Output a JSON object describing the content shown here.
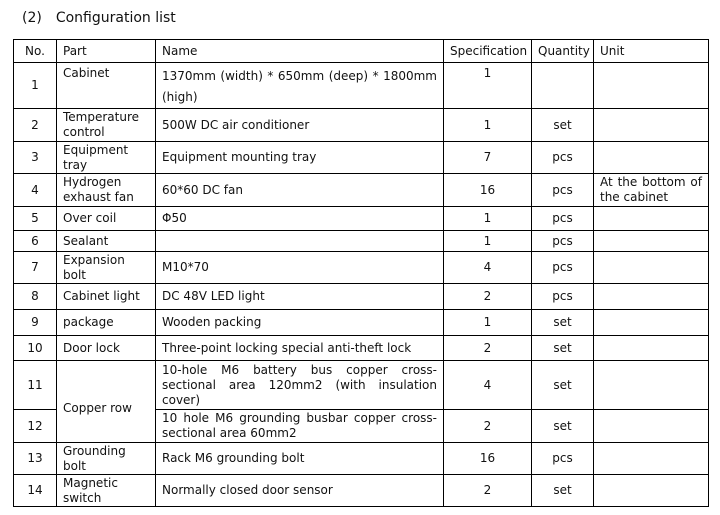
{
  "section": {
    "number": "(2)",
    "title": "Configuration list"
  },
  "headers": [
    "No.",
    "Part",
    "Name",
    "Specification",
    "Quantity",
    "Unit"
  ],
  "rows": [
    {
      "no": "1",
      "part": "Cabinet",
      "name": "1370mm (width) * 650mm (deep) * 1800mm (high)",
      "spec": "1",
      "qty": "",
      "unit": ""
    },
    {
      "no": "2",
      "part": "Temperature control",
      "name": "500W DC air conditioner",
      "spec": "1",
      "qty": "set",
      "unit": ""
    },
    {
      "no": "3",
      "part": "Equipment tray",
      "name": "Equipment mounting tray",
      "spec": "7",
      "qty": "pcs",
      "unit": ""
    },
    {
      "no": "4",
      "part": "Hydrogen exhaust fan",
      "name": "60*60 DC fan",
      "spec": "16",
      "qty": "pcs",
      "unit": "At the bottom of the cabinet"
    },
    {
      "no": "5",
      "part": "Over coil",
      "name": "Φ50",
      "spec": "1",
      "qty": "pcs",
      "unit": ""
    },
    {
      "no": "6",
      "part": "Sealant",
      "name": "",
      "spec": "1",
      "qty": "pcs",
      "unit": ""
    },
    {
      "no": "7",
      "part": "Expansion bolt",
      "name": "M10*70",
      "spec": "4",
      "qty": "pcs",
      "unit": ""
    },
    {
      "no": "8",
      "part": "Cabinet light",
      "name": "DC 48V LED light",
      "spec": "2",
      "qty": "pcs",
      "unit": ""
    },
    {
      "no": "9",
      "part": "package",
      "name": "Wooden packing",
      "spec": "1",
      "qty": "set",
      "unit": ""
    },
    {
      "no": "10",
      "part": "Door lock",
      "name": "Three-point locking special anti-theft lock",
      "spec": "2",
      "qty": "set",
      "unit": ""
    },
    {
      "no": "11",
      "part": "Copper row",
      "name": "10-hole M6 battery bus copper cross-sectional area 120mm2 (with insulation cover)",
      "spec": "4",
      "qty": "set",
      "unit": ""
    },
    {
      "no": "12",
      "part": "",
      "name": "10 hole M6 grounding busbar copper cross-sectional area 60mm2",
      "spec": "2",
      "qty": "set",
      "unit": ""
    },
    {
      "no": "13",
      "part": "Grounding bolt",
      "name": "Rack M6 grounding bolt",
      "spec": "16",
      "qty": "pcs",
      "unit": ""
    },
    {
      "no": "14",
      "part": "Magnetic switch",
      "name": "Normally closed door sensor",
      "spec": "2",
      "qty": "set",
      "unit": ""
    }
  ]
}
